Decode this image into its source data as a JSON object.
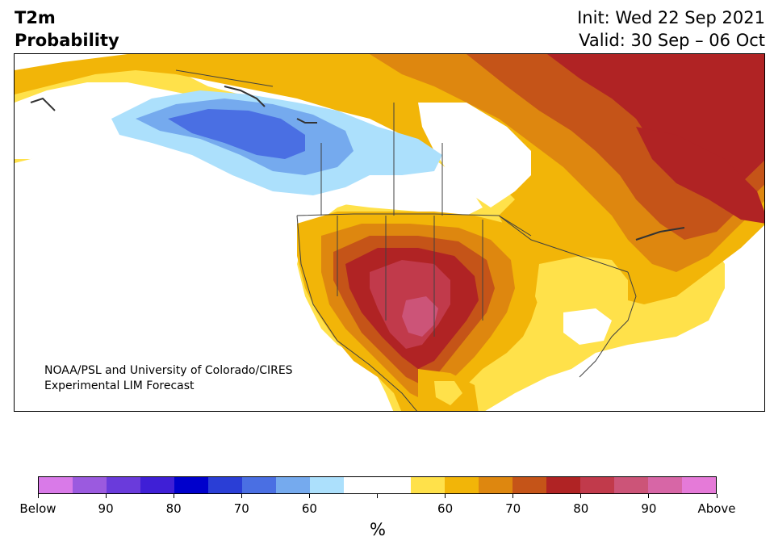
{
  "title": {
    "line1": "T2m",
    "line2": "Probability"
  },
  "dates": {
    "init": "Init: Wed 22 Sep 2021",
    "valid": "Valid: 30 Sep – 06 Oct"
  },
  "credit": {
    "line1": "NOAA/PSL and University of Colorado/CIRES",
    "line2": "Experimental LIM Forecast"
  },
  "colorbar": {
    "unit": "%",
    "colors": [
      "#d97ae8",
      "#9b5adf",
      "#6a3bdb",
      "#3f1fd6",
      "#0000cc",
      "#2a3ed6",
      "#4a6fe3",
      "#75aaee",
      "#ace0fc",
      "#ffffff",
      "#ffffff",
      "#ffe14a",
      "#f2b508",
      "#de870f",
      "#c55418",
      "#b02324",
      "#c13a4b",
      "#cc5478",
      "#d766a6",
      "#e57ad8"
    ],
    "tick_labels": [
      "Below",
      "90",
      "80",
      "70",
      "60",
      "",
      "60",
      "70",
      "80",
      "90",
      "Above"
    ]
  },
  "map_colors": {
    "ocean": "#ffffff",
    "land_base": "#ffffff",
    "above_50": "#ffe14a",
    "above_60": "#f2b508",
    "above_70": "#de870f",
    "above_80": "#c55418",
    "above_90": "#b02324",
    "above_95": "#c13a4b",
    "above_98": "#cc5478",
    "below_60": "#ace0fc",
    "below_70": "#75aaee",
    "below_80": "#4a6fe3",
    "border": "#404040"
  }
}
